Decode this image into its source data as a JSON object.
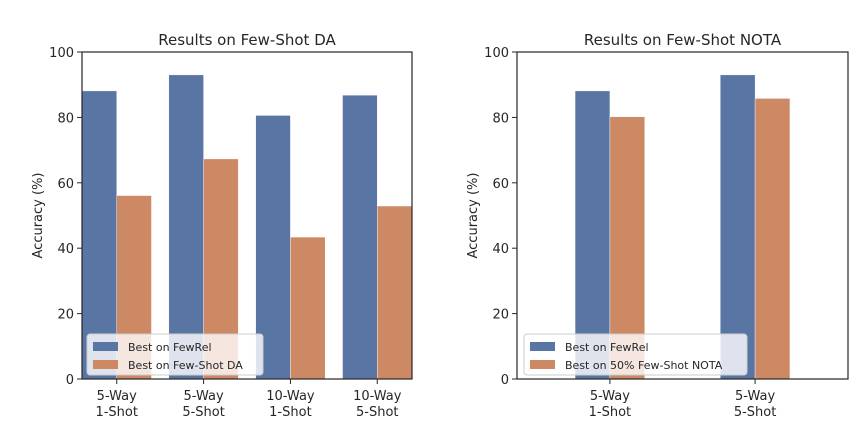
{
  "colors": {
    "series_0": "#5975a4",
    "series_1": "#cc8963",
    "axis": "#262626",
    "legend_bg": "#ffffff",
    "legend_border": "#cccccc"
  },
  "chart_data": [
    {
      "type": "bar",
      "title": "Results on Few-Shot DA",
      "xlabel": "",
      "ylabel": "Accuracy (%)",
      "ylim": [
        0,
        100
      ],
      "yticks": [
        0,
        20,
        40,
        60,
        80,
        100
      ],
      "xlim": [
        -0.4,
        3.4
      ],
      "bar_width": 0.4,
      "grid": false,
      "legend_position": "lower-left",
      "categories": [
        [
          "5-Way",
          "1-Shot"
        ],
        [
          "5-Way",
          "5-Shot"
        ],
        [
          "10-Way",
          "1-Shot"
        ],
        [
          "10-Way",
          "5-Shot"
        ]
      ],
      "series": [
        {
          "name": "Best on FewRel",
          "values": [
            88.1,
            93.0,
            80.6,
            86.8
          ]
        },
        {
          "name": "Best on Few-Shot DA",
          "values": [
            56.1,
            67.3,
            43.4,
            52.9
          ]
        }
      ]
    },
    {
      "type": "bar",
      "title": "Results on Few-Shot NOTA",
      "xlabel": "",
      "ylabel": "Accuracy (%)",
      "ylim": [
        0,
        100
      ],
      "yticks": [
        0,
        20,
        40,
        60,
        80,
        100
      ],
      "xlim": [
        -0.64,
        1.64
      ],
      "bar_width": 0.24,
      "grid": false,
      "legend_position": "lower-left",
      "categories": [
        [
          "5-Way",
          "1-Shot"
        ],
        [
          "5-Way",
          "5-Shot"
        ]
      ],
      "series": [
        {
          "name": "Best on FewRel",
          "values": [
            88.1,
            93.0
          ]
        },
        {
          "name": "Best on 50% Few-Shot NOTA",
          "values": [
            80.2,
            85.8
          ]
        }
      ]
    }
  ]
}
